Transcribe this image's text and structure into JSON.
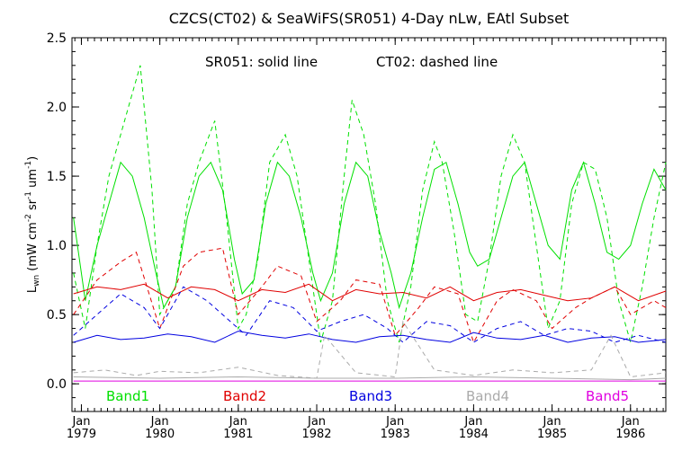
{
  "chart_data": {
    "type": "line",
    "title": "CZCS(CT02) & SeaWiFS(SR051) 4-Day nLw, EAtl Subset",
    "subtitle_solid": "SR051: solid line",
    "subtitle_dashed": "CT02: dashed line",
    "ylabel": "Lwn (mW cm-2 sr-1 um-1)",
    "ylim": [
      -0.2,
      2.5
    ],
    "xlim": [
      1978.88,
      1986.45
    ],
    "y_ticks": [
      "0.0",
      "0.5",
      "1.0",
      "1.5",
      "2.0",
      "2.5"
    ],
    "x_ticks": [
      {
        "month": "Jan",
        "year": "1979"
      },
      {
        "month": "Jan",
        "year": "1980"
      },
      {
        "month": "Jan",
        "year": "1981"
      },
      {
        "month": "Jan",
        "year": "1982"
      },
      {
        "month": "Jan",
        "year": "1983"
      },
      {
        "month": "Jan",
        "year": "1984"
      },
      {
        "month": "Jan",
        "year": "1985"
      },
      {
        "month": "Jan",
        "year": "1986"
      }
    ],
    "grid": false,
    "legend": [
      {
        "name": "Band1",
        "color": "#00e000"
      },
      {
        "name": "Band2",
        "color": "#e00000"
      },
      {
        "name": "Band3",
        "color": "#0000e0"
      },
      {
        "name": "Band4",
        "color": "#aaaaaa"
      },
      {
        "name": "Band5",
        "color": "#e000e0"
      }
    ],
    "series": [
      {
        "name": "Band1",
        "style": "solid",
        "color": "#00e000",
        "x": [
          1978.9,
          1979.05,
          1979.2,
          1979.35,
          1979.5,
          1979.65,
          1979.8,
          1979.95,
          1980.05,
          1980.2,
          1980.35,
          1980.5,
          1980.65,
          1980.8,
          1980.95,
          1981.05,
          1981.2,
          1981.35,
          1981.5,
          1981.65,
          1981.8,
          1981.95,
          1982.05,
          1982.2,
          1982.35,
          1982.5,
          1982.65,
          1982.8,
          1982.95,
          1983.05,
          1983.2,
          1983.35,
          1983.5,
          1983.65,
          1983.8,
          1983.95,
          1984.05,
          1984.2,
          1984.35,
          1984.5,
          1984.65,
          1984.8,
          1984.95,
          1985.1,
          1985.25,
          1985.4,
          1985.55,
          1985.7,
          1985.85,
          1986.0,
          1986.15,
          1986.3,
          1986.45
        ],
        "values": [
          1.2,
          0.6,
          1.0,
          1.3,
          1.6,
          1.5,
          1.2,
          0.8,
          0.55,
          0.7,
          1.2,
          1.5,
          1.6,
          1.4,
          0.9,
          0.65,
          0.75,
          1.3,
          1.6,
          1.5,
          1.2,
          0.8,
          0.6,
          0.8,
          1.3,
          1.6,
          1.5,
          1.1,
          0.8,
          0.55,
          0.8,
          1.2,
          1.55,
          1.6,
          1.3,
          0.95,
          0.85,
          0.9,
          1.2,
          1.5,
          1.6,
          1.3,
          1.0,
          0.9,
          1.4,
          1.6,
          1.3,
          0.95,
          0.9,
          1.0,
          1.3,
          1.55,
          1.4
        ]
      },
      {
        "name": "Band1",
        "style": "dashed",
        "color": "#00e000",
        "x": [
          1978.9,
          1979.05,
          1979.2,
          1979.35,
          1979.5,
          1979.6,
          1979.75,
          1979.9,
          1980.0,
          1980.2,
          1980.35,
          1980.5,
          1980.7,
          1980.85,
          1981.0,
          1981.1,
          1981.25,
          1981.4,
          1981.6,
          1981.75,
          1981.9,
          1982.05,
          1982.2,
          1982.35,
          1982.45,
          1982.6,
          1982.75,
          1982.9,
          1983.05,
          1983.2,
          1983.35,
          1983.5,
          1983.6,
          1983.75,
          1983.9,
          1984.05,
          1984.2,
          1984.35,
          1984.5,
          1984.65,
          1984.8,
          1984.95,
          1985.1,
          1985.25,
          1985.4,
          1985.55,
          1985.7,
          1985.85,
          1986.0,
          1986.15,
          1986.3,
          1986.45
        ],
        "values": [
          0.8,
          0.4,
          1.0,
          1.5,
          1.8,
          2.0,
          2.3,
          1.4,
          0.5,
          0.7,
          1.3,
          1.6,
          1.9,
          1.2,
          0.4,
          0.5,
          0.9,
          1.6,
          1.8,
          1.5,
          0.9,
          0.3,
          0.6,
          1.5,
          2.05,
          1.8,
          1.3,
          0.6,
          0.3,
          0.7,
          1.4,
          1.75,
          1.6,
          1.1,
          0.5,
          0.45,
          0.9,
          1.5,
          1.8,
          1.6,
          1.0,
          0.4,
          0.6,
          1.3,
          1.6,
          1.55,
          1.2,
          0.6,
          0.3,
          0.7,
          1.2,
          1.6
        ]
      },
      {
        "name": "Band2",
        "style": "solid",
        "color": "#e00000",
        "x": [
          1978.9,
          1979.2,
          1979.5,
          1979.8,
          1980.1,
          1980.4,
          1980.7,
          1981.0,
          1981.3,
          1981.6,
          1981.9,
          1982.2,
          1982.5,
          1982.8,
          1983.1,
          1983.4,
          1983.7,
          1984.0,
          1984.3,
          1984.6,
          1984.9,
          1985.2,
          1985.5,
          1985.8,
          1986.1,
          1986.45
        ],
        "values": [
          0.65,
          0.7,
          0.68,
          0.72,
          0.62,
          0.7,
          0.68,
          0.6,
          0.68,
          0.66,
          0.72,
          0.6,
          0.68,
          0.65,
          0.66,
          0.62,
          0.7,
          0.6,
          0.66,
          0.68,
          0.64,
          0.6,
          0.62,
          0.7,
          0.6,
          0.67
        ]
      },
      {
        "name": "Band2",
        "style": "dashed",
        "color": "#e00000",
        "x": [
          1978.9,
          1979.2,
          1979.5,
          1979.7,
          1980.0,
          1980.3,
          1980.5,
          1980.8,
          1981.0,
          1981.3,
          1981.5,
          1981.8,
          1982.0,
          1982.3,
          1982.5,
          1982.8,
          1983.0,
          1983.3,
          1983.5,
          1983.8,
          1984.0,
          1984.3,
          1984.5,
          1984.8,
          1985.0,
          1985.3,
          1985.5,
          1985.8,
          1986.0,
          1986.3,
          1986.45
        ],
        "values": [
          0.5,
          0.75,
          0.88,
          0.95,
          0.4,
          0.85,
          0.95,
          0.98,
          0.5,
          0.7,
          0.85,
          0.78,
          0.45,
          0.6,
          0.75,
          0.72,
          0.35,
          0.55,
          0.7,
          0.65,
          0.3,
          0.6,
          0.68,
          0.6,
          0.4,
          0.55,
          0.62,
          0.7,
          0.5,
          0.6,
          0.55
        ]
      },
      {
        "name": "Band3",
        "style": "solid",
        "color": "#0000e0",
        "x": [
          1978.9,
          1979.2,
          1979.5,
          1979.8,
          1980.1,
          1980.4,
          1980.7,
          1981.0,
          1981.3,
          1981.6,
          1981.9,
          1982.2,
          1982.5,
          1982.8,
          1983.1,
          1983.4,
          1983.7,
          1984.0,
          1984.3,
          1984.6,
          1984.9,
          1985.2,
          1985.5,
          1985.8,
          1986.1,
          1986.45
        ],
        "values": [
          0.3,
          0.35,
          0.32,
          0.33,
          0.36,
          0.34,
          0.3,
          0.38,
          0.35,
          0.33,
          0.36,
          0.32,
          0.3,
          0.34,
          0.35,
          0.32,
          0.3,
          0.37,
          0.33,
          0.32,
          0.35,
          0.3,
          0.33,
          0.34,
          0.3,
          0.32
        ]
      },
      {
        "name": "Band3",
        "style": "dashed",
        "color": "#0000e0",
        "x": [
          1978.9,
          1979.2,
          1979.5,
          1979.8,
          1980.0,
          1980.3,
          1980.6,
          1980.9,
          1981.1,
          1981.4,
          1981.7,
          1982.0,
          1982.3,
          1982.6,
          1982.9,
          1983.1,
          1983.4,
          1983.7,
          1984.0,
          1984.3,
          1984.6,
          1984.9,
          1985.2,
          1985.5,
          1985.8,
          1986.1,
          1986.45
        ],
        "values": [
          0.35,
          0.5,
          0.65,
          0.55,
          0.4,
          0.7,
          0.6,
          0.45,
          0.35,
          0.6,
          0.55,
          0.38,
          0.45,
          0.5,
          0.4,
          0.3,
          0.45,
          0.42,
          0.3,
          0.4,
          0.45,
          0.35,
          0.4,
          0.38,
          0.3,
          0.35,
          0.3
        ]
      },
      {
        "name": "Band4",
        "style": "solid",
        "color": "#aaaaaa",
        "x": [
          1978.9,
          1980.0,
          1981.0,
          1982.0,
          1983.0,
          1984.0,
          1985.0,
          1986.0,
          1986.45
        ],
        "values": [
          0.05,
          0.04,
          0.05,
          0.04,
          0.04,
          0.05,
          0.04,
          0.03,
          0.04
        ]
      },
      {
        "name": "Band4",
        "style": "dashed",
        "color": "#aaaaaa",
        "x": [
          1978.9,
          1979.3,
          1979.7,
          1980.0,
          1980.5,
          1981.0,
          1981.5,
          1982.0,
          1982.1,
          1982.5,
          1983.0,
          1983.1,
          1983.5,
          1984.0,
          1984.5,
          1985.0,
          1985.5,
          1985.75,
          1986.0,
          1986.45
        ],
        "values": [
          0.08,
          0.1,
          0.06,
          0.09,
          0.08,
          0.12,
          0.06,
          0.04,
          0.35,
          0.08,
          0.05,
          0.45,
          0.1,
          0.06,
          0.1,
          0.08,
          0.1,
          0.35,
          0.05,
          0.08
        ]
      },
      {
        "name": "Band5",
        "style": "solid",
        "color": "#e000e0",
        "x": [
          1978.9,
          1986.45
        ],
        "values": [
          0.02,
          0.02
        ]
      }
    ]
  }
}
